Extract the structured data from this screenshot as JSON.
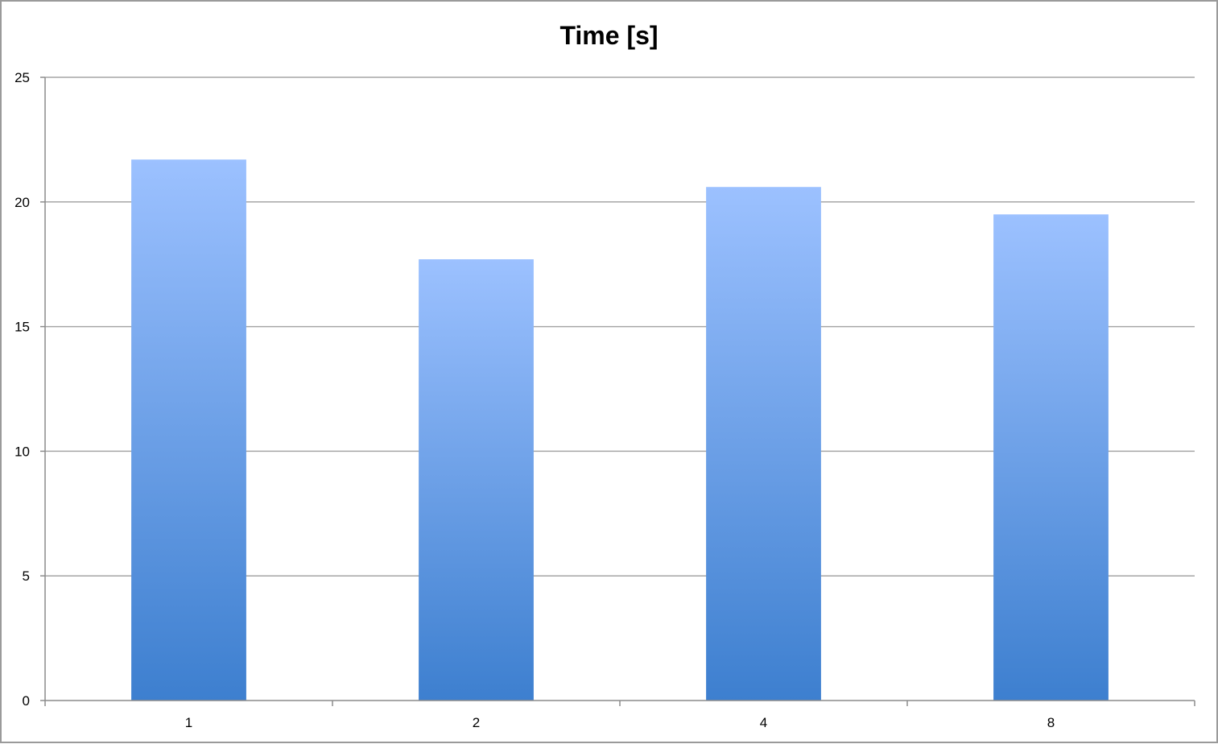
{
  "chart_data": {
    "type": "bar",
    "title": "Time [s]",
    "categories": [
      "1",
      "2",
      "4",
      "8"
    ],
    "values": [
      21.7,
      17.7,
      20.6,
      19.5
    ],
    "xlabel": "",
    "ylabel": "",
    "ylim": [
      0,
      25
    ],
    "yticks": [
      0,
      5,
      10,
      15,
      20,
      25
    ],
    "grid": true,
    "legend": "none",
    "colors": {
      "bar_top": "#9cc1ff",
      "bar_bottom": "#3d7fcf",
      "grid": "#a6a6a6",
      "axis": "#8c8c8c"
    }
  }
}
